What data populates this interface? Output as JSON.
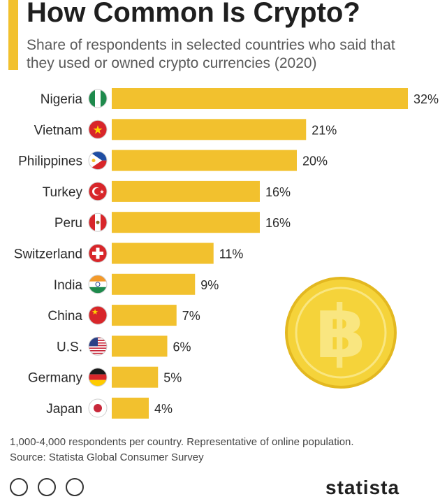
{
  "header": {
    "title": "How Common Is Crypto?",
    "subtitle": "Share of respondents in selected countries who said that they used or owned crypto currencies (2020)"
  },
  "footer": {
    "note": "1,000-4,000 respondents per country. Representative of online population.",
    "source": "Source: Statista Global Consumer Survey",
    "logo_text": "statista"
  },
  "colors": {
    "bar": "#f2c12e",
    "accent": "#f2c12e",
    "coin": "#f5d33a"
  },
  "icons": [
    "coin-bitcoin-icon",
    "cc-license-icon",
    "attribution-icon",
    "equals-icon"
  ],
  "chart_data": {
    "type": "bar",
    "orientation": "horizontal",
    "title": "How Common Is Crypto?",
    "subtitle": "Share of respondents in selected countries who said that they used or owned crypto currencies (2020)",
    "categories": [
      "Nigeria",
      "Vietnam",
      "Philippines",
      "Turkey",
      "Peru",
      "Switzerland",
      "India",
      "China",
      "U.S.",
      "Germany",
      "Japan"
    ],
    "values": [
      32,
      21,
      20,
      16,
      16,
      11,
      9,
      7,
      6,
      5,
      4
    ],
    "data_labels": [
      "32%",
      "21%",
      "20%",
      "16%",
      "16%",
      "11%",
      "9%",
      "7%",
      "6%",
      "5%",
      "4%"
    ],
    "flags": [
      "nigeria-flag-icon",
      "vietnam-flag-icon",
      "philippines-flag-icon",
      "turkey-flag-icon",
      "peru-flag-icon",
      "switzerland-flag-icon",
      "india-flag-icon",
      "china-flag-icon",
      "us-flag-icon",
      "germany-flag-icon",
      "japan-flag-icon"
    ],
    "unit": "%",
    "xlim": [
      0,
      32
    ],
    "grid": false,
    "legend": "none"
  }
}
